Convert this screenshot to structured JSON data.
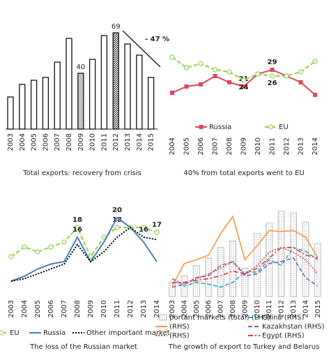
{
  "chart_data": [
    {
      "type": "bar",
      "title": "Total exports: recovery from crisis",
      "categories": [
        "2003",
        "2004",
        "2005",
        "2006",
        "2007",
        "2008",
        "2009",
        "2010",
        "2011",
        "2012",
        "2013",
        "2014",
        "2015"
      ],
      "values": [
        23,
        32,
        35,
        37,
        48,
        65,
        40,
        50,
        67,
        69,
        61,
        53,
        37
      ],
      "value_labels": [
        null,
        null,
        null,
        null,
        null,
        null,
        "40",
        null,
        null,
        "69",
        null,
        null,
        null
      ],
      "color": "#ffffff",
      "annotation": "- 47 %",
      "ylim": [
        0,
        75
      ]
    },
    {
      "type": "line",
      "title": "40% from total exports went to EU",
      "categories": [
        "2004",
        "2005",
        "2006",
        "2007",
        "2008",
        "2009",
        "2010",
        "2011",
        "2012",
        "2013",
        "2014"
      ],
      "series": [
        {
          "name": "Russia",
          "color": "#e0475b",
          "dash": "solid",
          "marker": "square",
          "values": [
            18,
            21,
            22,
            26,
            23,
            21,
            27,
            29,
            26,
            23,
            17
          ],
          "value_labels": [
            null,
            null,
            null,
            null,
            null,
            "21",
            null,
            "29",
            null,
            null,
            null
          ]
        },
        {
          "name": "EU",
          "color": "#92d050",
          "dash": "dashed",
          "marker": "circle",
          "values": [
            35,
            30,
            32,
            29,
            28,
            24,
            27,
            26,
            26,
            28,
            33
          ],
          "value_labels": [
            null,
            null,
            null,
            null,
            null,
            "24",
            null,
            "26",
            null,
            null,
            null
          ]
        }
      ],
      "ylim": [
        10,
        40
      ],
      "legend": "bottom"
    },
    {
      "type": "line",
      "title": "The loss of the Russian market",
      "categories": [
        "2003",
        "2004",
        "2005",
        "2006",
        "2007",
        "2008",
        "2009",
        "2010",
        "2011",
        "2012",
        "2013",
        "2014"
      ],
      "series": [
        {
          "name": "EU",
          "color": "#92d050",
          "dash": "dashed",
          "marker": "circle",
          "values": [
            12,
            14,
            13,
            14,
            15,
            18,
            12,
            16,
            18,
            18,
            18,
            17
          ],
          "value_labels": [
            null,
            null,
            null,
            null,
            null,
            "18",
            null,
            null,
            "18",
            null,
            null,
            "17"
          ]
        },
        {
          "name": "Russia",
          "color": "#4a7ebb",
          "dash": "solid",
          "marker": "none",
          "values": [
            7,
            8,
            9.5,
            10.5,
            11,
            16,
            11,
            15,
            20,
            18,
            15,
            11
          ],
          "value_labels": [
            null,
            null,
            null,
            null,
            null,
            "16",
            null,
            null,
            "20",
            null,
            null,
            null
          ]
        },
        {
          "name": "Other important market",
          "color": "#000000",
          "dash": "dotted",
          "marker": "none",
          "values": [
            7,
            7.5,
            8.5,
            9.5,
            10.5,
            14.5,
            11,
            13,
            16,
            18,
            16,
            15.5
          ],
          "value_labels": [
            null,
            null,
            null,
            null,
            null,
            null,
            null,
            null,
            null,
            null,
            "16",
            null
          ]
        }
      ],
      "ylim": [
        0,
        25
      ],
      "legend": "bottom"
    },
    {
      "type": "combo",
      "title": "The growth of export to Turkey and Belarus",
      "categories": [
        "2003",
        "2004",
        "2005",
        "2006",
        "2007",
        "2008",
        "2009",
        "2010",
        "2011",
        "2012",
        "2013",
        "2014",
        "2015"
      ],
      "series": [
        {
          "name": "portant markets (total) (LHS)",
          "kind": "bar",
          "color": "#bfbfbf",
          "values": [
            15,
            22,
            33,
            41,
            52,
            59,
            30,
            67,
            78,
            91,
            89,
            79,
            56
          ]
        },
        {
          "name": "China (RHS)",
          "kind": "line",
          "color": "#31a5b8",
          "dash": "dashed",
          "values": [
            19,
            11,
            15,
            13,
            10,
            15,
            26,
            26,
            39,
            33,
            52,
            48,
            39
          ]
        },
        {
          "name": "(RHS)",
          "kind": "line",
          "color": "#f79646",
          "dash": "solid",
          "values": [
            11,
            35,
            39,
            44,
            67,
            85,
            39,
            54,
            70,
            69,
            70,
            63,
            41
          ]
        },
        {
          "name": "Kazakhstan (RHS)",
          "kind": "line",
          "color": "#7f5fa8",
          "dash": "dashed",
          "values": [
            10,
            13,
            20,
            22,
            33,
            37,
            22,
            24,
            35,
            37,
            41,
            20,
            11
          ]
        },
        {
          "name": "(RHS)",
          "kind": "line",
          "color": "#c0504d",
          "dash": "dotted",
          "values": [
            19,
            13,
            19,
            24,
            30,
            37,
            24,
            33,
            47,
            52,
            47,
            39,
            24
          ]
        },
        {
          "name": "Egypt (RHS)",
          "kind": "line",
          "color": "#e8313a",
          "dash": "dashdot",
          "values": [
            15,
            15,
            17,
            19,
            22,
            27,
            24,
            30,
            41,
            52,
            52,
            44,
            41
          ]
        }
      ],
      "ylim": [
        0,
        100
      ],
      "legend": "bottom"
    }
  ]
}
